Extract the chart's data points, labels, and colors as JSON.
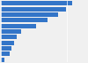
{
  "values": [
    21.4,
    19.5,
    17.2,
    14.0,
    10.5,
    6.2,
    4.8,
    3.9,
    3.2,
    2.6,
    1.0
  ],
  "bar_color": "#3375c8",
  "background_color": "#f0f0f0",
  "plot_bg": "#f0f0f0",
  "xlim": [
    0,
    26
  ],
  "bar_height": 0.82,
  "grid_color": "#ffffff",
  "grid_lw": 0.5
}
